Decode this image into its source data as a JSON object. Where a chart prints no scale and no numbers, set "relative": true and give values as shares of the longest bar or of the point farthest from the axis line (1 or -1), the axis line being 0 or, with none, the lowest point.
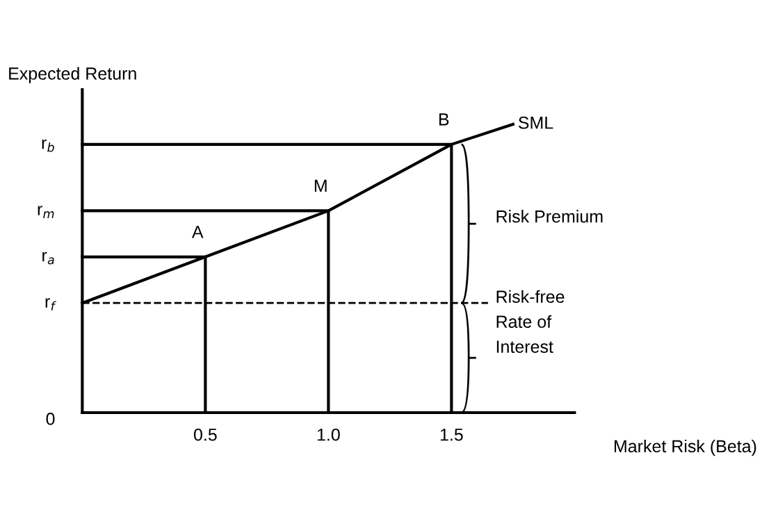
{
  "chart_data": {
    "type": "line",
    "relative": true,
    "xlabel": "Market Risk (Beta)",
    "ylabel": "Expected Return",
    "xlim": [
      0,
      2
    ],
    "xticks": [
      {
        "value": 0.5,
        "label": "0.5"
      },
      {
        "value": 1.0,
        "label": "1.0"
      },
      {
        "value": 1.5,
        "label": "1.5"
      }
    ],
    "series": [
      {
        "name": "SML",
        "color": "#000000",
        "x": [
          0,
          0.5,
          1.0,
          1.5,
          1.75
        ],
        "values": [
          0.38,
          0.54,
          0.7,
          0.93,
          1
        ]
      },
      {
        "color": "#000000",
        "x": [
          0,
          0.5,
          0.5
        ],
        "values": [
          0.54,
          0.54,
          0
        ]
      },
      {
        "color": "#000000",
        "x": [
          0,
          1.0,
          1.0
        ],
        "values": [
          0.7,
          0.7,
          0
        ]
      },
      {
        "color": "#000000",
        "x": [
          0,
          1.5,
          1.5
        ],
        "values": [
          0.93,
          0.93,
          0
        ]
      }
    ],
    "ref_lines": [
      {
        "axis": "y",
        "value": 0.38,
        "color": "#000000",
        "line_style": "dashed"
      }
    ],
    "annotations": [
      {
        "text": "A",
        "x": 0.5,
        "y": 0.54
      },
      {
        "text": "M",
        "x": 1.0,
        "y": 0.7
      },
      {
        "text": "B",
        "x": 1.5,
        "y": 0.93
      },
      {
        "text": "r$_{f}$",
        "x": 0,
        "y": 0.38
      },
      {
        "text": "r$_{a}$",
        "x": 0,
        "y": 0.54
      },
      {
        "text": "r$_{m}$",
        "x": 0,
        "y": 0.7
      },
      {
        "text": "r$_{b}$",
        "x": 0,
        "y": 0.93
      },
      "0",
      "Risk Premium",
      "Risk-free\nRate of\nInterest"
    ],
    "grid": false,
    "marker": "none",
    "line_style": "solid"
  }
}
